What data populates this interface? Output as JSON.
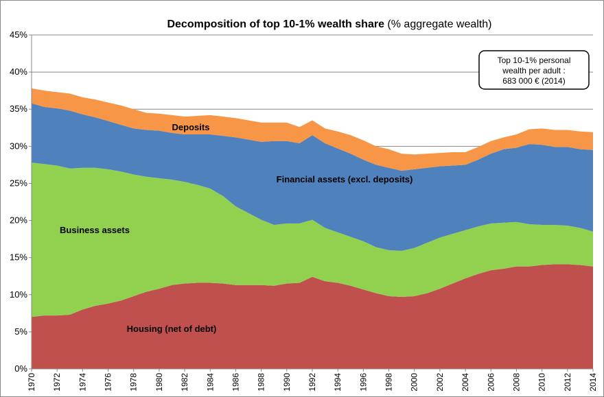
{
  "chart_data": {
    "type": "stacked_area",
    "title": "Decomposition of top 10-1% wealth share",
    "subtitle": "(% aggregate wealth)",
    "annotation": [
      "Top 10-1% personal",
      "wealth per adult :",
      "683 000 € (2014)"
    ],
    "x": [
      1970,
      1971,
      1972,
      1973,
      1974,
      1975,
      1976,
      1977,
      1978,
      1979,
      1980,
      1981,
      1982,
      1983,
      1984,
      1985,
      1986,
      1987,
      1988,
      1989,
      1990,
      1991,
      1992,
      1993,
      1994,
      1995,
      1996,
      1997,
      1998,
      1999,
      2000,
      2001,
      2002,
      2003,
      2004,
      2005,
      2006,
      2007,
      2008,
      2009,
      2010,
      2011,
      2012,
      2013,
      2014
    ],
    "xlim": [
      1970,
      2014
    ],
    "xticks": [
      1970,
      1972,
      1974,
      1976,
      1978,
      1980,
      1982,
      1984,
      1986,
      1988,
      1990,
      1992,
      1994,
      1996,
      1998,
      2000,
      2002,
      2004,
      2006,
      2008,
      2010,
      2012,
      2014
    ],
    "ylim": [
      0,
      45
    ],
    "yticks": [
      {
        "value": 0,
        "label": "0%"
      },
      {
        "value": 5,
        "label": "5%"
      },
      {
        "value": 10,
        "label": "10%"
      },
      {
        "value": 15,
        "label": "15%"
      },
      {
        "value": 20,
        "label": "20%"
      },
      {
        "value": 25,
        "label": "25%"
      },
      {
        "value": 30,
        "label": "30%"
      },
      {
        "value": 35,
        "label": "35%"
      },
      {
        "value": 40,
        "label": "40%"
      },
      {
        "value": 45,
        "label": "45%"
      }
    ],
    "grid": true,
    "series": [
      {
        "name": "Housing (net of debt)",
        "color": "#c0504d",
        "values": [
          7.0,
          7.2,
          7.2,
          7.3,
          8.0,
          8.5,
          8.8,
          9.2,
          9.8,
          10.4,
          10.8,
          11.3,
          11.5,
          11.6,
          11.6,
          11.5,
          11.3,
          11.3,
          11.3,
          11.2,
          11.5,
          11.6,
          12.4,
          11.8,
          11.6,
          11.2,
          10.7,
          10.2,
          9.8,
          9.7,
          9.8,
          10.2,
          10.8,
          11.5,
          12.2,
          12.8,
          13.3,
          13.5,
          13.8,
          13.8,
          14.0,
          14.1,
          14.1,
          14.0,
          13.8
        ]
      },
      {
        "name": "Business assets",
        "color": "#92d050",
        "values": [
          20.8,
          20.4,
          20.2,
          19.7,
          19.1,
          18.6,
          18.1,
          17.4,
          16.4,
          15.5,
          14.9,
          14.2,
          13.7,
          13.2,
          12.7,
          11.8,
          10.6,
          9.7,
          8.8,
          8.2,
          8.1,
          8.0,
          7.7,
          7.2,
          6.8,
          6.6,
          6.5,
          6.2,
          6.2,
          6.2,
          6.5,
          6.8,
          6.9,
          6.7,
          6.5,
          6.4,
          6.3,
          6.2,
          6.0,
          5.7,
          5.4,
          5.3,
          5.2,
          5.0,
          4.7
        ]
      },
      {
        "name": "Financial assets  (excl. deposits)",
        "color": "#4f81bd",
        "values": [
          8.0,
          7.7,
          7.7,
          7.8,
          7.2,
          6.8,
          6.5,
          6.3,
          6.2,
          6.3,
          6.4,
          6.3,
          6.4,
          6.8,
          7.3,
          8.1,
          9.3,
          9.9,
          10.5,
          11.3,
          11.1,
          10.8,
          11.4,
          11.4,
          11.3,
          11.2,
          11.0,
          11.1,
          11.1,
          10.8,
          10.6,
          10.1,
          9.6,
          9.2,
          8.8,
          9.0,
          9.4,
          9.9,
          10.0,
          10.8,
          10.8,
          10.5,
          10.6,
          10.6,
          11.0
        ]
      },
      {
        "name": "Deposits",
        "color": "#f79646",
        "values": [
          2.0,
          2.2,
          2.2,
          2.3,
          2.3,
          2.4,
          2.5,
          2.6,
          2.6,
          2.3,
          2.3,
          2.4,
          2.4,
          2.5,
          2.6,
          2.6,
          2.6,
          2.6,
          2.6,
          2.5,
          2.5,
          2.2,
          2.0,
          2.0,
          2.3,
          2.5,
          2.6,
          2.5,
          2.5,
          2.3,
          2.0,
          1.9,
          1.8,
          1.8,
          1.7,
          1.7,
          1.7,
          1.6,
          1.8,
          2.0,
          2.2,
          2.3,
          2.3,
          2.4,
          2.4
        ]
      }
    ]
  }
}
